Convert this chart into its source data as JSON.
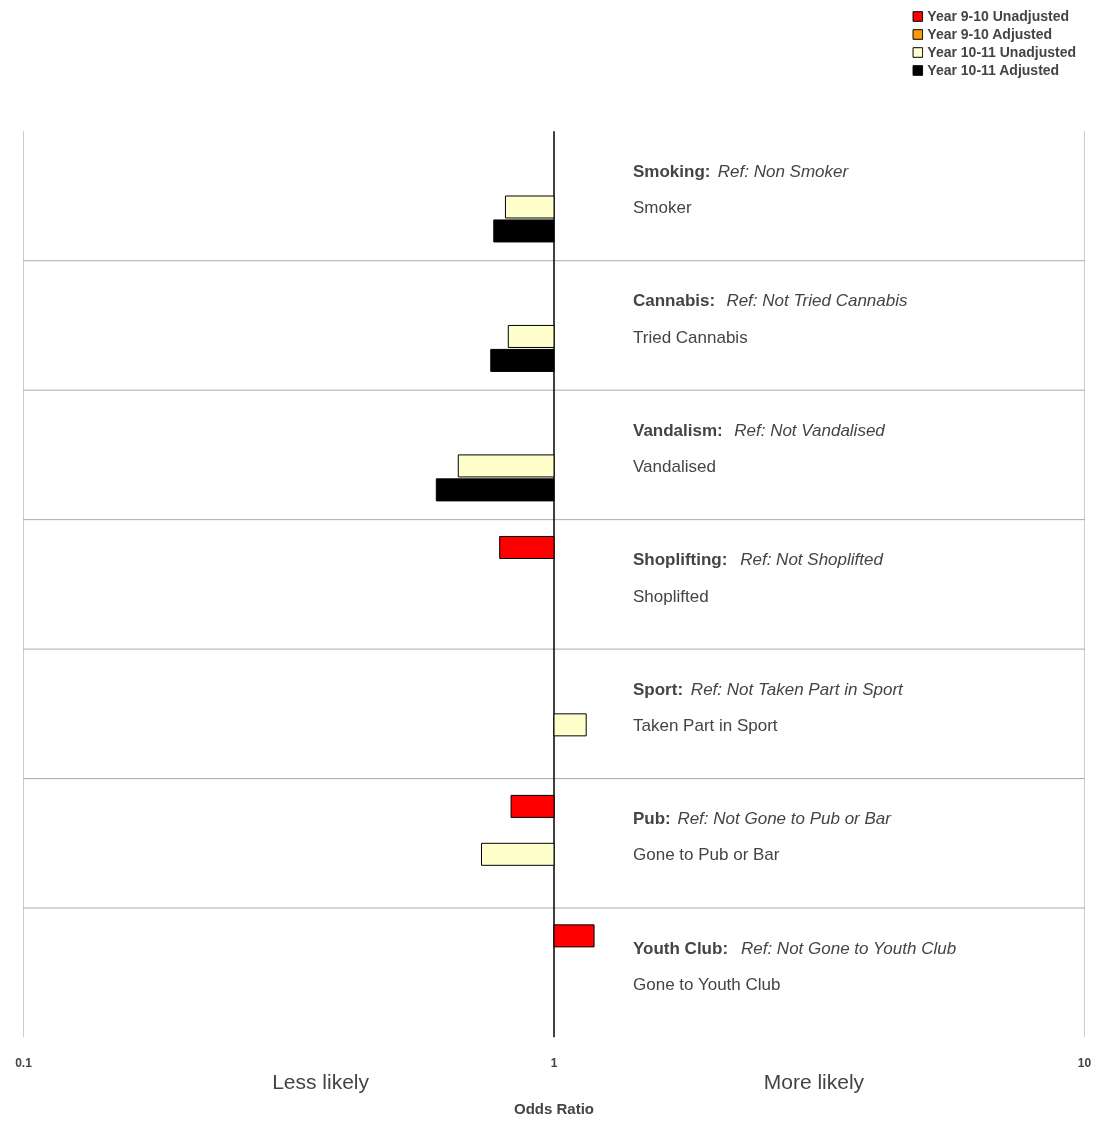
{
  "chart_data": {
    "type": "bar",
    "orientation": "horizontal",
    "log": "x",
    "categories": [
      "Smoker",
      "Tried Cannabis",
      "Vandalised",
      "Shoplifted",
      "Taken Part in Sport",
      "Gone to Pub or Bar",
      "Gone to Youth Club"
    ],
    "series": [
      {
        "name": "Year 9-10 Unadjusted",
        "color": "#ff0000",
        "base": [
          null,
          null,
          null,
          1,
          null,
          1,
          1
        ],
        "values": [
          null,
          null,
          null,
          -0.21,
          null,
          -0.17,
          0.19
        ]
      },
      {
        "name": "Year 9-10 Adjusted",
        "color": "#ff9900",
        "values": [
          null,
          null,
          null,
          null,
          null,
          null,
          null
        ]
      },
      {
        "name": "Year 10-11 Unadjusted",
        "color": "#ffffcc",
        "base": [
          1,
          1,
          1,
          null,
          1,
          1,
          null
        ],
        "values": [
          -0.19,
          -0.18,
          -0.34,
          null,
          0.15,
          -0.27,
          null
        ]
      },
      {
        "name": "Year 10-11 Adjusted",
        "color": "#000000",
        "base": [
          1,
          1,
          1,
          null,
          null,
          null,
          null
        ],
        "values": [
          -0.23,
          -0.24,
          -0.4,
          null,
          null,
          null,
          null
        ]
      }
    ],
    "xlim": [
      0.1,
      10
    ],
    "xticks": [
      0.1,
      1,
      10
    ],
    "xlabel": "Odds Ratio",
    "ref_lines": [
      {
        "axis": "x",
        "value": 1,
        "color": "#000000"
      }
    ],
    "grid": "y",
    "legend": "top right",
    "annotations": [
      "Smoking: Ref: Non Smoker",
      "Cannabis: Ref: Not Tried Cannabis",
      "Vandalism: Ref: Not Vandalised",
      "Shoplifting: Ref: Not Shoplifted",
      "Sport: Ref: Not Taken Part in Sport",
      "Pub: Ref: Not Gone to Pub or Bar",
      "Youth Club: Ref: Not Gone to Youth Club",
      "Less likely",
      "More likely"
    ]
  }
}
